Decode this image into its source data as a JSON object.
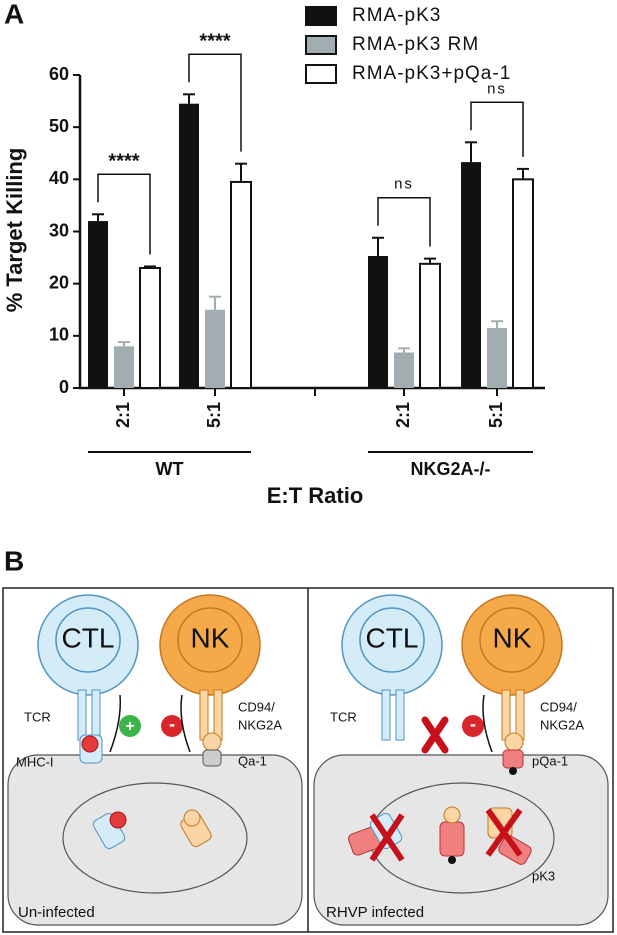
{
  "chart_data": {
    "type": "bar",
    "panel_label": "A",
    "y_title": "% Target Killing",
    "x_title": "E:T Ratio",
    "categories": [
      "2:1",
      "5:1",
      "2:1",
      "5:1"
    ],
    "groups": [
      {
        "label": "WT",
        "categories": [
          0,
          1
        ]
      },
      {
        "label": "NKG2A-/-",
        "categories": [
          2,
          3
        ]
      }
    ],
    "series": [
      {
        "name": "RMA-pK3",
        "color": "#111111",
        "values": [
          32,
          54.5,
          25.3,
          43.3
        ],
        "errors": [
          1.3,
          1.8,
          3.5,
          3.8
        ]
      },
      {
        "name": "RMA-pK3 RM",
        "color": "#a2adb1",
        "values": [
          8,
          15,
          6.8,
          11.5
        ],
        "errors": [
          0.8,
          2.5,
          0.8,
          1.3
        ]
      },
      {
        "name": "RMA-pK3+pQa-1",
        "color": "#ffffff",
        "values": [
          23,
          39.5,
          23.8,
          40
        ],
        "errors": [
          0.3,
          3.5,
          1,
          2
        ]
      }
    ],
    "significance": [
      "****",
      "****",
      "ns",
      "ns"
    ],
    "ylim": [
      0,
      60
    ],
    "yticks": [
      0,
      10,
      20,
      30,
      40,
      50,
      60
    ]
  },
  "diagram": {
    "panel_label": "B",
    "left": {
      "cells": [
        "CTL",
        "NK"
      ],
      "receptors": [
        "TCR",
        "MHC-I",
        "CD94/",
        "NKG2A",
        "Qa-1"
      ],
      "caption": "Un-infected"
    },
    "right": {
      "cells": [
        "CTL",
        "NK"
      ],
      "receptors": [
        "TCR",
        "CD94/",
        "NKG2A",
        "pQa-1",
        "pK3"
      ],
      "caption": "RHVP infected"
    }
  }
}
